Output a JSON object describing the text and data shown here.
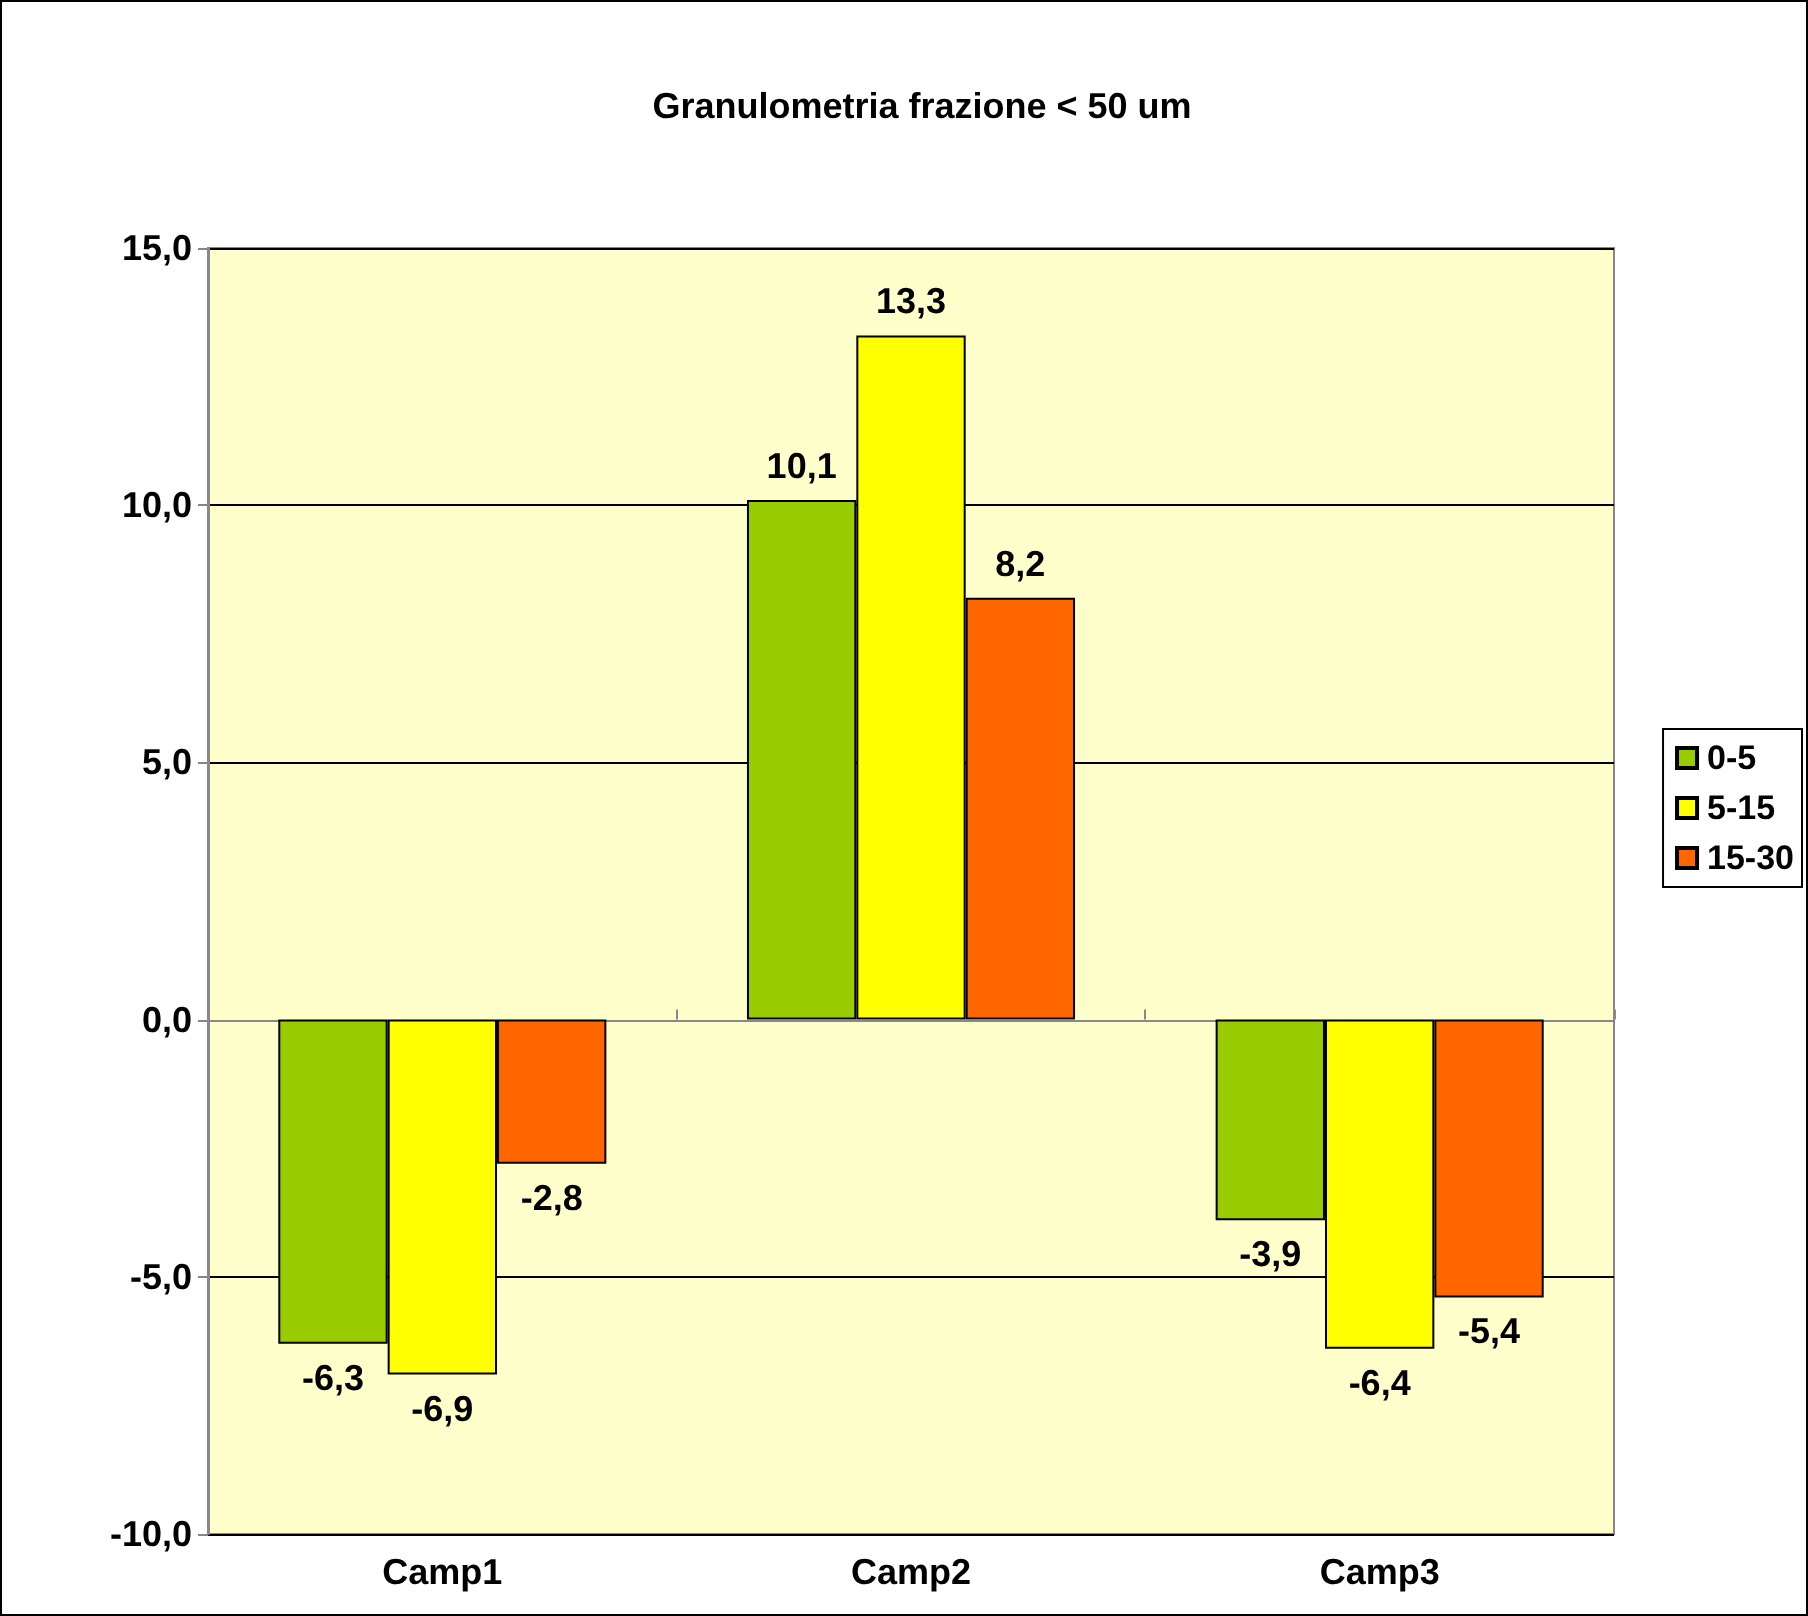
{
  "chart_data": {
    "type": "bar",
    "title": "Granulometria frazione < 50 um",
    "categories": [
      "Camp1",
      "Camp2",
      "Camp3"
    ],
    "series": [
      {
        "name": "0-5",
        "color": "#99cc00",
        "values": [
          -6.3,
          10.1,
          -3.9
        ],
        "value_labels": [
          "-6,3",
          "10,1",
          "-3,9"
        ]
      },
      {
        "name": "5-15",
        "color": "#ffff00",
        "values": [
          -6.9,
          13.3,
          -6.4
        ],
        "value_labels": [
          "-6,9",
          "13,3",
          "-6,4"
        ]
      },
      {
        "name": "15-30",
        "color": "#ff6600",
        "values": [
          -2.8,
          8.2,
          -5.4
        ],
        "value_labels": [
          "-2,8",
          "8,2",
          "-5,4"
        ]
      }
    ],
    "ylim": [
      -10,
      15
    ],
    "yticks": [
      {
        "value": -10,
        "label": "-10,0"
      },
      {
        "value": -5,
        "label": "-5,0"
      },
      {
        "value": 0,
        "label": "0,0"
      },
      {
        "value": 5,
        "label": "5,0"
      },
      {
        "value": 10,
        "label": "10,0"
      },
      {
        "value": 15,
        "label": "15,0"
      }
    ],
    "grid": "y",
    "legend": "right"
  }
}
